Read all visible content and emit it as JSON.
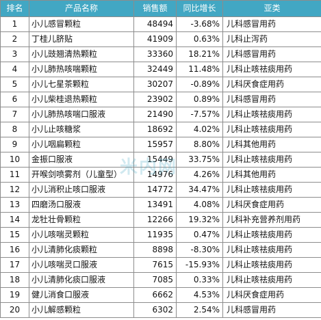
{
  "table": {
    "headers": [
      "排名",
      "产品名称",
      "销售额",
      "同比增长",
      "亚类"
    ],
    "rows": [
      {
        "rank": "1",
        "name": "小儿感冒颗粒",
        "sales": "48494",
        "growth": "-3.68%",
        "category": "儿科感冒用药"
      },
      {
        "rank": "2",
        "name": "丁桂儿脐贴",
        "sales": "41909",
        "growth": "0.63%",
        "category": "儿科止泻药"
      },
      {
        "rank": "3",
        "name": "小儿豉翘清热颗粒",
        "sales": "33360",
        "growth": "18.21%",
        "category": "儿科感冒用药"
      },
      {
        "rank": "4",
        "name": "小儿肺热咳喘颗粒",
        "sales": "32449",
        "growth": "11.48%",
        "category": "儿科止咳祛痰用药"
      },
      {
        "rank": "5",
        "name": "小儿七星茶颗粒",
        "sales": "30207",
        "growth": "-0.89%",
        "category": "儿科厌食症用药"
      },
      {
        "rank": "6",
        "name": "小儿柴桂退热颗粒",
        "sales": "23902",
        "growth": "0.89%",
        "category": "儿科感冒用药"
      },
      {
        "rank": "7",
        "name": "小儿肺热咳喘口服液",
        "sales": "21490",
        "growth": "-7.57%",
        "category": "儿科止咳祛痰用药"
      },
      {
        "rank": "8",
        "name": "小儿止咳糖浆",
        "sales": "18692",
        "growth": "4.02%",
        "category": "儿科止咳祛痰用药"
      },
      {
        "rank": "9",
        "name": "小儿咽扁颗粒",
        "sales": "15957",
        "growth": "8.80%",
        "category": "儿科其他用药"
      },
      {
        "rank": "10",
        "name": "金振口服液",
        "sales": "15449",
        "growth": "33.75%",
        "category": "儿科止咳祛痰用药"
      },
      {
        "rank": "11",
        "name": "开喉剑喷雾剂（儿童型）",
        "sales": "14976",
        "growth": "4.26%",
        "category": "儿科其他用药"
      },
      {
        "rank": "12",
        "name": "小儿消积止咳口服液",
        "sales": "14772",
        "growth": "34.47%",
        "category": "儿科止咳祛痰用药"
      },
      {
        "rank": "13",
        "name": "四磨汤口服液",
        "sales": "13491",
        "growth": "4.08%",
        "category": "儿科厌食症用药"
      },
      {
        "rank": "14",
        "name": "龙牡壮骨颗粒",
        "sales": "12266",
        "growth": "19.32%",
        "category": "儿科补充营养剂用药"
      },
      {
        "rank": "15",
        "name": "小儿咳喘灵颗粒",
        "sales": "11935",
        "growth": "0.47%",
        "category": "儿科止咳祛痰用药"
      },
      {
        "rank": "16",
        "name": "小儿清肺化痰颗粒",
        "sales": "8898",
        "growth": "-8.30%",
        "category": "儿科止咳祛痰用药"
      },
      {
        "rank": "17",
        "name": "小儿咳喘灵口服液",
        "sales": "7615",
        "growth": "-15.93%",
        "category": "儿科止咳祛痰用药"
      },
      {
        "rank": "18",
        "name": "小儿清肺化痰口服液",
        "sales": "7085",
        "growth": "0.33%",
        "category": "儿科止咳祛痰用药"
      },
      {
        "rank": "19",
        "name": "健儿消食口服液",
        "sales": "6662",
        "growth": "4.53%",
        "category": "儿科厌食症用药"
      },
      {
        "rank": "20",
        "name": "小儿解感颗粒",
        "sales": "6302",
        "growth": "2.54%",
        "category": "儿科感冒用药"
      }
    ]
  },
  "watermark": {
    "text": "米内网"
  },
  "colors": {
    "header_bg": "#42a7c3",
    "header_text": "#ffffff",
    "border": "#8c8c8c"
  }
}
